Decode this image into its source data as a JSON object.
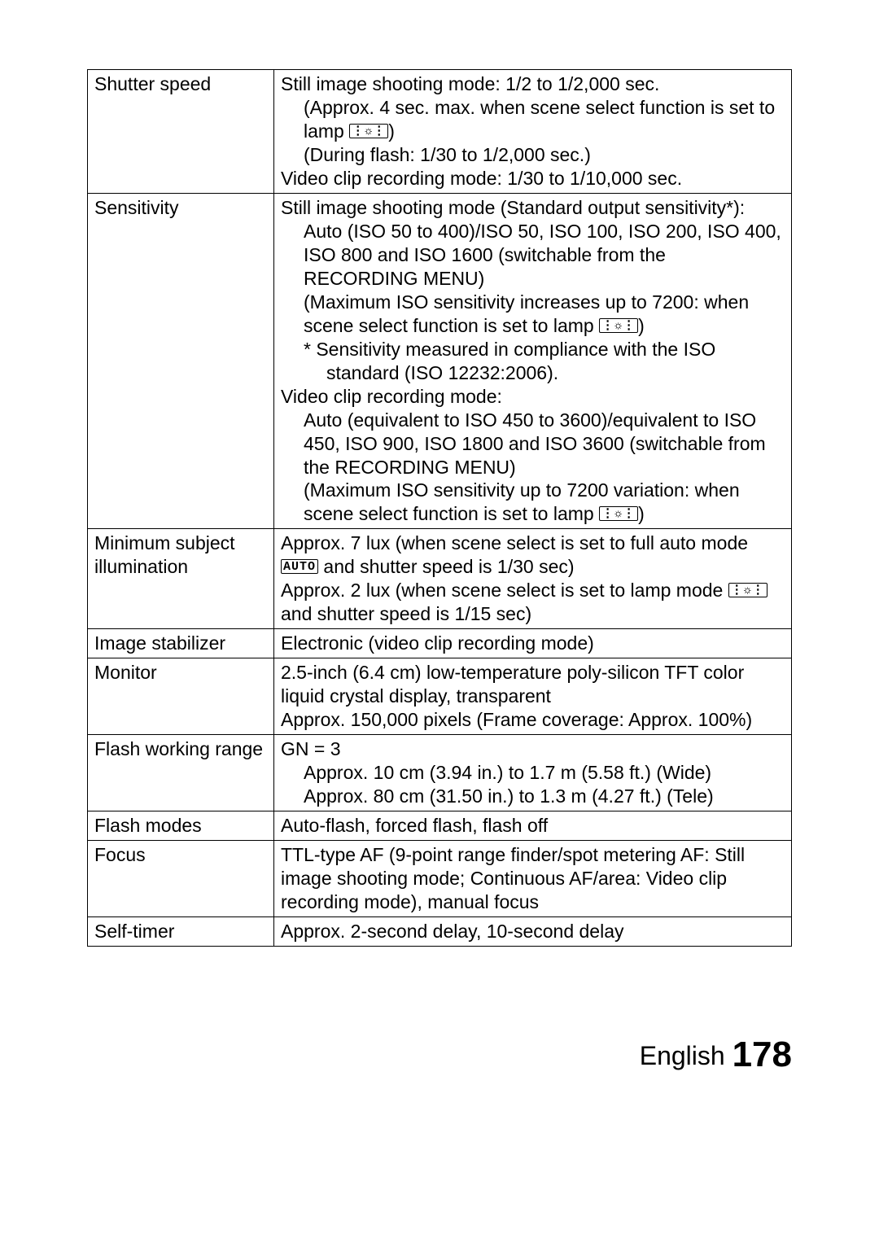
{
  "icons": {
    "lamp": "⋮☼⋮",
    "auto": "AUTO"
  },
  "rows": [
    {
      "label": "Shutter speed",
      "parts": [
        {
          "text": "Still image shooting mode: 1/2 to 1/2,000 sec."
        },
        {
          "text": "(Approx. 4 sec. max. when scene select function is set to lamp ",
          "indent": 1,
          "iconAfter": "lamp",
          "after": ")"
        },
        {
          "text": "(During flash: 1/30 to 1/2,000 sec.)",
          "indent": 1
        },
        {
          "text": "Video clip recording mode: 1/30 to 1/10,000 sec."
        }
      ]
    },
    {
      "label": "Sensitivity",
      "parts": [
        {
          "text": "Still image shooting mode (Standard output sensitivity*):"
        },
        {
          "text": "Auto (ISO 50 to 400)/ISO 50, ISO 100, ISO 200, ISO 400, ISO 800 and ISO 1600 (switchable from the RECORDING MENU)",
          "indent": 1
        },
        {
          "text": "(Maximum ISO sensitivity increases up to 7200: when scene select function is set to lamp ",
          "indent": 1,
          "iconAfter": "lamp",
          "after": ")"
        },
        {
          "text": "*  Sensitivity measured in compliance with the ISO",
          "indent": 1
        },
        {
          "text": "standard (ISO 12232:2006).",
          "indent": 2
        },
        {
          "text": "Video clip recording mode:"
        },
        {
          "text": "Auto (equivalent to ISO 450 to 3600)/equivalent to ISO 450, ISO 900, ISO 1800 and ISO 3600 (switchable from the RECORDING MENU)",
          "indent": 1
        },
        {
          "text": "(Maximum ISO sensitivity up to 7200 variation: when scene select function is set to lamp ",
          "indent": 1,
          "iconAfter": "lamp",
          "after": ")"
        }
      ]
    },
    {
      "label": "Minimum subject illumination",
      "parts": [
        {
          "text": "Approx. 7 lux (when scene select is set to full auto mode ",
          "iconAfter": "auto",
          "after": " and shutter speed is 1/30 sec)"
        },
        {
          "text": "Approx. 2 lux (when scene select is set to lamp mode ",
          "iconAfter": "lamp",
          "after": " and shutter speed is 1/15 sec)"
        }
      ]
    },
    {
      "label": "Image stabilizer",
      "parts": [
        {
          "text": "Electronic (video clip recording mode)"
        }
      ]
    },
    {
      "label": "Monitor",
      "parts": [
        {
          "text": "2.5-inch (6.4 cm) low-temperature poly-silicon TFT color liquid crystal display, transparent"
        },
        {
          "text": "Approx. 150,000 pixels (Frame coverage: Approx. 100%)"
        }
      ]
    },
    {
      "label": "Flash working range",
      "parts": [
        {
          "text": "GN = 3"
        },
        {
          "text": "Approx. 10 cm (3.94 in.) to 1.7 m (5.58 ft.) (Wide)",
          "indent": 1
        },
        {
          "text": "Approx. 80 cm (31.50 in.) to 1.3 m (4.27 ft.) (Tele)",
          "indent": 1
        }
      ]
    },
    {
      "label": "Flash modes",
      "parts": [
        {
          "text": "Auto-flash, forced flash, flash off"
        }
      ]
    },
    {
      "label": "Focus",
      "parts": [
        {
          "text": "TTL-type AF (9-point range finder/spot metering AF: Still image shooting mode; Continuous AF/area: Video clip recording mode), manual focus"
        }
      ]
    },
    {
      "label": "Self-timer",
      "parts": [
        {
          "text": "Approx. 2-second delay, 10-second delay"
        }
      ]
    }
  ],
  "footer": {
    "lang": "English",
    "page": "178"
  }
}
